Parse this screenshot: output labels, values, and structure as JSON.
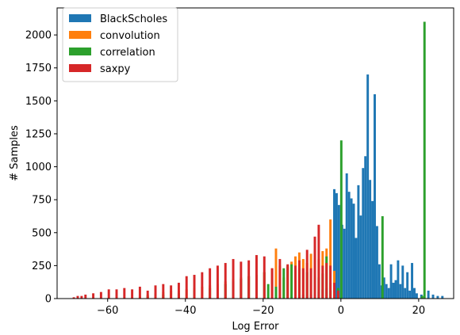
{
  "chart_data": {
    "type": "bar",
    "xlabel": "Log Error",
    "ylabel": "# Samples",
    "xlim": [
      -73,
      29
    ],
    "ylim": [
      0,
      2205
    ],
    "xticks": [
      -60,
      -40,
      -20,
      0,
      20
    ],
    "yticks": [
      0,
      250,
      500,
      750,
      1000,
      1250,
      1500,
      1750,
      2000
    ],
    "legend_position": "top-left",
    "grid": false,
    "series": [
      {
        "name": "BlackScholes",
        "color": "#1f77b4",
        "bins": [
          [
            -13,
            20
          ],
          [
            -12,
            30
          ],
          [
            -11,
            20
          ],
          [
            -10,
            30
          ],
          [
            -9,
            20
          ],
          [
            -8,
            30
          ],
          [
            -7,
            40
          ],
          [
            -6,
            50
          ],
          [
            -5,
            70
          ],
          [
            -4,
            80
          ],
          [
            -3,
            120
          ],
          [
            -2,
            830
          ],
          [
            -1.4,
            800
          ],
          [
            -0.8,
            710
          ],
          [
            0,
            560
          ],
          [
            0.6,
            530
          ],
          [
            1.2,
            950
          ],
          [
            1.8,
            810
          ],
          [
            2.4,
            760
          ],
          [
            3.0,
            720
          ],
          [
            3.6,
            460
          ],
          [
            4.2,
            860
          ],
          [
            4.8,
            630
          ],
          [
            5.4,
            990
          ],
          [
            6.0,
            1080
          ],
          [
            6.6,
            1700
          ],
          [
            7.2,
            900
          ],
          [
            7.8,
            740
          ],
          [
            8.4,
            1550
          ],
          [
            9.0,
            550
          ],
          [
            9.6,
            260
          ],
          [
            10.2,
            100
          ],
          [
            10.8,
            160
          ],
          [
            11.4,
            110
          ],
          [
            12.0,
            80
          ],
          [
            12.6,
            260
          ],
          [
            13.2,
            120
          ],
          [
            13.8,
            140
          ],
          [
            14.4,
            290
          ],
          [
            15.0,
            110
          ],
          [
            15.6,
            250
          ],
          [
            16.2,
            80
          ],
          [
            16.8,
            200
          ],
          [
            17.4,
            60
          ],
          [
            18.0,
            270
          ],
          [
            18.6,
            80
          ],
          [
            19.2,
            40
          ],
          [
            20.4,
            30
          ],
          [
            22.2,
            60
          ],
          [
            23.4,
            30
          ],
          [
            24.6,
            20
          ],
          [
            25.8,
            20
          ]
        ]
      },
      {
        "name": "convolution",
        "color": "#ff7f0e",
        "bins": [
          [
            -52,
            20
          ],
          [
            -50,
            30
          ],
          [
            -48,
            40
          ],
          [
            -46,
            50
          ],
          [
            -44,
            60
          ],
          [
            -42,
            60
          ],
          [
            -40,
            70
          ],
          [
            -38,
            80
          ],
          [
            -36,
            90
          ],
          [
            -34,
            100
          ],
          [
            -32,
            110
          ],
          [
            -30,
            130
          ],
          [
            -28,
            150
          ],
          [
            -26,
            160
          ],
          [
            -24,
            170
          ],
          [
            -22,
            180
          ],
          [
            -20,
            200
          ],
          [
            -18,
            230
          ],
          [
            -17,
            380
          ],
          [
            -16,
            250
          ],
          [
            -15,
            160
          ],
          [
            -14,
            240
          ],
          [
            -13,
            280
          ],
          [
            -12,
            320
          ],
          [
            -11,
            350
          ],
          [
            -10,
            300
          ],
          [
            -9,
            270
          ],
          [
            -8,
            340
          ],
          [
            -7,
            370
          ],
          [
            -6,
            300
          ],
          [
            -5,
            360
          ],
          [
            -4,
            380
          ],
          [
            -3,
            600
          ],
          [
            -2,
            210
          ],
          [
            -1,
            50
          ]
        ]
      },
      {
        "name": "correlation",
        "color": "#2ca02c",
        "bins": [
          [
            -50,
            20
          ],
          [
            -46,
            30
          ],
          [
            -42,
            40
          ],
          [
            -38,
            60
          ],
          [
            -34,
            80
          ],
          [
            -30,
            110
          ],
          [
            -28,
            130
          ],
          [
            -26,
            150
          ],
          [
            -24,
            170
          ],
          [
            -22,
            180
          ],
          [
            -20,
            200
          ],
          [
            -19,
            110
          ],
          [
            -17,
            90
          ],
          [
            -15,
            230
          ],
          [
            -14,
            250
          ],
          [
            -13,
            260
          ],
          [
            -11,
            230
          ],
          [
            -9,
            200
          ],
          [
            -7,
            170
          ],
          [
            -6,
            160
          ],
          [
            -5,
            190
          ],
          [
            -4,
            320
          ],
          [
            -3,
            60
          ],
          [
            -1,
            80
          ],
          [
            -0.2,
            1200
          ],
          [
            10.4,
            625
          ],
          [
            20.6,
            20
          ],
          [
            21.2,
            2100
          ]
        ]
      },
      {
        "name": "saxpy",
        "color": "#d62728",
        "bins": [
          [
            -69,
            10
          ],
          [
            -68,
            20
          ],
          [
            -67,
            20
          ],
          [
            -66,
            30
          ],
          [
            -64,
            40
          ],
          [
            -62,
            50
          ],
          [
            -60,
            70
          ],
          [
            -58,
            70
          ],
          [
            -56,
            80
          ],
          [
            -54,
            70
          ],
          [
            -52,
            90
          ],
          [
            -50,
            60
          ],
          [
            -48,
            100
          ],
          [
            -46,
            110
          ],
          [
            -44,
            100
          ],
          [
            -42,
            120
          ],
          [
            -40,
            170
          ],
          [
            -38,
            180
          ],
          [
            -36,
            200
          ],
          [
            -34,
            230
          ],
          [
            -32,
            250
          ],
          [
            -30,
            270
          ],
          [
            -28,
            300
          ],
          [
            -26,
            280
          ],
          [
            -24,
            290
          ],
          [
            -22,
            330
          ],
          [
            -20,
            320
          ],
          [
            -18,
            230
          ],
          [
            -16,
            300
          ],
          [
            -14,
            260
          ],
          [
            -12,
            250
          ],
          [
            -11,
            290
          ],
          [
            -10,
            230
          ],
          [
            -9,
            370
          ],
          [
            -8,
            230
          ],
          [
            -7,
            470
          ],
          [
            -6,
            560
          ],
          [
            -5,
            250
          ],
          [
            -4,
            270
          ],
          [
            -3,
            250
          ],
          [
            -2,
            120
          ],
          [
            -1,
            60
          ]
        ]
      }
    ]
  }
}
